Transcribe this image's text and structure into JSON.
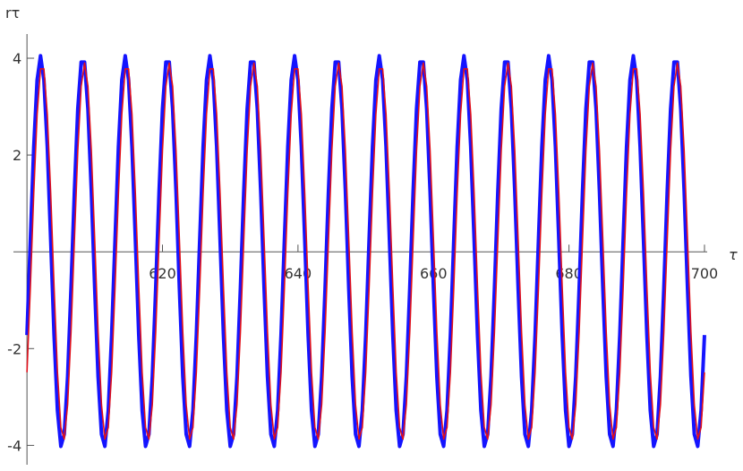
{
  "chart_data": {
    "type": "line",
    "x_label": "τ",
    "y_label": "rτ",
    "xlim": [
      598,
      700.4
    ],
    "ylim": [
      -4.4,
      4.5
    ],
    "xticks": [
      620,
      640,
      660,
      680,
      700
    ],
    "yticks": [
      -4,
      -2,
      2,
      4
    ],
    "x": [
      600,
      600.5,
      601,
      601.5,
      602,
      602.5,
      603,
      603.5,
      604,
      604.5,
      605,
      605.5,
      606,
      606.5,
      607,
      607.5,
      608,
      608.5,
      609,
      609.5,
      610,
      610.5,
      611,
      611.5,
      612,
      612.5,
      613,
      613.5,
      614,
      614.5,
      615,
      615.5,
      616,
      616.5,
      617,
      617.5,
      618,
      618.5,
      619,
      619.5,
      620,
      620.5,
      621,
      621.5,
      622,
      622.5,
      623,
      623.5,
      624,
      624.5,
      625,
      625.5,
      626,
      626.5,
      627,
      627.5,
      628,
      628.5,
      629,
      629.5,
      630,
      630.5,
      631,
      631.5,
      632,
      632.5,
      633,
      633.5,
      634,
      634.5,
      635,
      635.5,
      636,
      636.5,
      637,
      637.5,
      638,
      638.5,
      639,
      639.5,
      640,
      640.5,
      641,
      641.5,
      642,
      642.5,
      643,
      643.5,
      644,
      644.5,
      645,
      645.5,
      646,
      646.5,
      647,
      647.5,
      648,
      648.5,
      649,
      649.5,
      650,
      650.5,
      651,
      651.5,
      652,
      652.5,
      653,
      653.5,
      654,
      654.5,
      655,
      655.5,
      656,
      656.5,
      657,
      657.5,
      658,
      658.5,
      659,
      659.5,
      660,
      660.5,
      661,
      661.5,
      662,
      662.5,
      663,
      663.5,
      664,
      664.5,
      665,
      665.5,
      666,
      666.5,
      667,
      667.5,
      668,
      668.5,
      669,
      669.5,
      670,
      670.5,
      671,
      671.5,
      672,
      672.5,
      673,
      673.5,
      674,
      674.5,
      675,
      675.5,
      676,
      676.5,
      677,
      677.5,
      678,
      678.5,
      679,
      679.5,
      680,
      680.5,
      681,
      681.5,
      682,
      682.5,
      683,
      683.5,
      684,
      684.5,
      685,
      685.5,
      686,
      686.5,
      687,
      687.5,
      688,
      688.5,
      689,
      689.5,
      690,
      690.5,
      691,
      691.5,
      692,
      692.5,
      693,
      693.5,
      694,
      694.5,
      695,
      695.5,
      696,
      696.5,
      697,
      697.5,
      698,
      698.5,
      699,
      699.5,
      700
    ],
    "series": [
      {
        "color": "#1414ff",
        "values": [
          -1.72,
          0.25,
          2.17,
          3.55,
          4.05,
          3.55,
          2.17,
          0.25,
          -1.72,
          -3.28,
          -4.02,
          -3.77,
          -2.58,
          -0.76,
          1.25,
          2.95,
          3.92,
          3.92,
          2.95,
          1.25,
          -0.76,
          -2.58,
          -3.77,
          -4.02,
          -3.28,
          -1.72,
          0.25,
          2.17,
          3.55,
          4.05,
          3.55,
          2.17,
          0.25,
          -1.72,
          -3.28,
          -4.02,
          -3.77,
          -2.58,
          -0.76,
          1.25,
          2.95,
          3.92,
          3.92,
          2.95,
          1.25,
          -0.76,
          -2.58,
          -3.77,
          -4.02,
          -3.28,
          -1.72,
          0.25,
          2.17,
          3.55,
          4.05,
          3.55,
          2.17,
          0.25,
          -1.72,
          -3.28,
          -4.02,
          -3.77,
          -2.58,
          -0.76,
          1.25,
          2.95,
          3.92,
          3.92,
          2.95,
          1.25,
          -0.76,
          -2.58,
          -3.77,
          -4.02,
          -3.28,
          -1.72,
          0.25,
          2.17,
          3.55,
          4.05,
          3.55,
          2.17,
          0.25,
          -1.72,
          -3.28,
          -4.02,
          -3.77,
          -2.58,
          -0.76,
          1.25,
          2.95,
          3.92,
          3.92,
          2.95,
          1.25,
          -0.76,
          -2.58,
          -3.77,
          -4.02,
          -3.28,
          -1.72,
          0.25,
          2.17,
          3.55,
          4.05,
          3.55,
          2.17,
          0.25,
          -1.72,
          -3.28,
          -4.02,
          -3.77,
          -2.58,
          -0.76,
          1.25,
          2.95,
          3.92,
          3.92,
          2.95,
          1.25,
          -0.76,
          -2.58,
          -3.77,
          -4.02,
          -3.28,
          -1.72,
          0.25,
          2.17,
          3.55,
          4.05,
          3.55,
          2.17,
          0.25,
          -1.72,
          -3.28,
          -4.02,
          -3.77,
          -2.58,
          -0.76,
          1.25,
          2.95,
          3.92,
          3.92,
          2.95,
          1.25,
          -0.76,
          -2.58,
          -3.77,
          -4.02,
          -3.28,
          -1.72,
          0.25,
          2.17,
          3.55,
          4.05,
          3.55,
          2.17,
          0.25,
          -1.72,
          -3.28,
          -4.02,
          -3.77,
          -2.58,
          -0.76,
          1.25,
          2.95,
          3.92,
          3.92,
          2.95,
          1.25,
          -0.76,
          -2.58,
          -3.77,
          -4.02,
          -3.28,
          -1.72,
          0.25,
          2.17,
          3.55,
          4.05,
          3.55,
          2.17,
          0.25,
          -1.72,
          -3.28,
          -4.02,
          -3.77,
          -2.58,
          -0.76,
          1.25,
          2.95,
          3.92,
          3.92,
          2.95,
          1.25,
          -0.76,
          -2.58,
          -3.77,
          -4.02,
          -3.28,
          -1.72
        ]
      },
      {
        "color": "#e0101a",
        "values": [
          -2.49,
          -0.73,
          1.21,
          2.84,
          3.78,
          3.78,
          2.84,
          1.21,
          -0.73,
          -2.49,
          -3.63,
          -3.87,
          -3.16,
          -1.66,
          0.24,
          2.09,
          3.42,
          3.9,
          3.42,
          2.09,
          0.24,
          -1.66,
          -3.16,
          -3.87,
          -3.63,
          -2.49,
          -0.73,
          1.21,
          2.84,
          3.78,
          3.78,
          2.84,
          1.21,
          -0.73,
          -2.49,
          -3.63,
          -3.87,
          -3.16,
          -1.66,
          0.24,
          2.09,
          3.42,
          3.9,
          3.42,
          2.09,
          0.24,
          -1.66,
          -3.16,
          -3.87,
          -3.63,
          -2.49,
          -0.73,
          1.21,
          2.84,
          3.78,
          3.78,
          2.84,
          1.21,
          -0.73,
          -2.49,
          -3.63,
          -3.87,
          -3.16,
          -1.66,
          0.24,
          2.09,
          3.42,
          3.9,
          3.42,
          2.09,
          0.24,
          -1.66,
          -3.16,
          -3.87,
          -3.63,
          -2.49,
          -0.73,
          1.21,
          2.84,
          3.78,
          3.78,
          2.84,
          1.21,
          -0.73,
          -2.49,
          -3.63,
          -3.87,
          -3.16,
          -1.66,
          0.24,
          2.09,
          3.42,
          3.9,
          3.42,
          2.09,
          0.24,
          -1.66,
          -3.16,
          -3.87,
          -3.63,
          -2.49,
          -0.73,
          1.21,
          2.84,
          3.78,
          3.78,
          2.84,
          1.21,
          -0.73,
          -2.49,
          -3.63,
          -3.87,
          -3.16,
          -1.66,
          0.24,
          2.09,
          3.42,
          3.9,
          3.42,
          2.09,
          0.24,
          -1.66,
          -3.16,
          -3.87,
          -3.63,
          -2.49,
          -0.73,
          1.21,
          2.84,
          3.78,
          3.78,
          2.84,
          1.21,
          -0.73,
          -2.49,
          -3.63,
          -3.87,
          -3.16,
          -1.66,
          0.24,
          2.09,
          3.42,
          3.9,
          3.42,
          2.09,
          0.24,
          -1.66,
          -3.16,
          -3.87,
          -3.63,
          -2.49,
          -0.73,
          1.21,
          2.84,
          3.78,
          3.78,
          2.84,
          1.21,
          -0.73,
          -2.49,
          -3.63,
          -3.87,
          -3.16,
          -1.66,
          0.24,
          2.09,
          3.42,
          3.9,
          3.42,
          2.09,
          0.24,
          -1.66,
          -3.16,
          -3.87,
          -3.63,
          -2.49,
          -0.73,
          1.21,
          2.84,
          3.78,
          3.78,
          2.84,
          1.21,
          -0.73,
          -2.49,
          -3.63,
          -3.87,
          -3.16,
          -1.66,
          0.24,
          2.09,
          3.42,
          3.9,
          3.42,
          2.09,
          0.24,
          -1.66,
          -3.16,
          -3.87,
          -3.63,
          -2.49
        ]
      }
    ]
  }
}
